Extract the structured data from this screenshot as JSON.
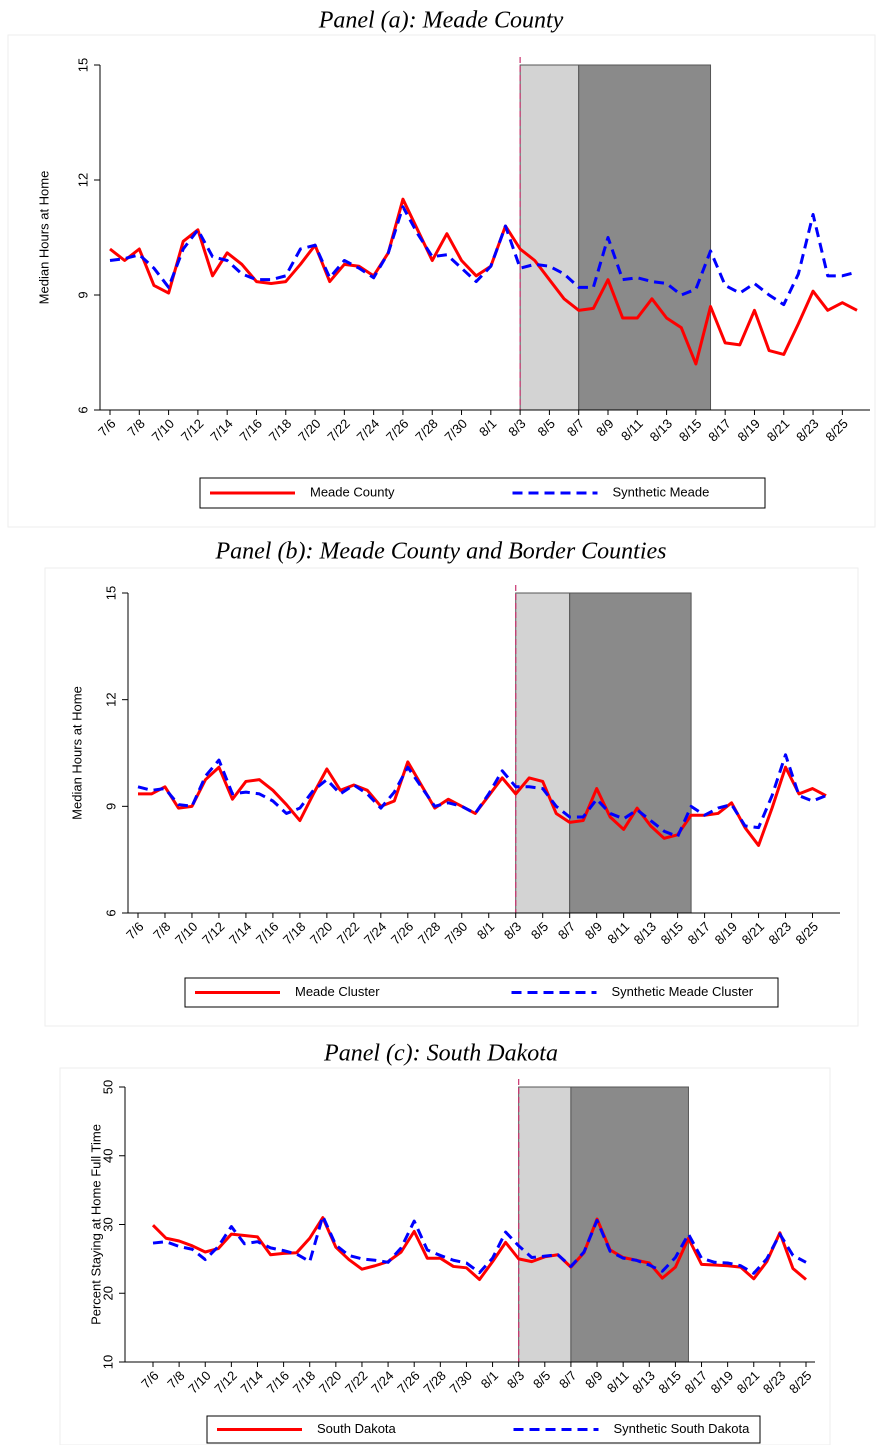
{
  "chart_data": [
    {
      "type": "line",
      "title": "Panel (a): Meade County",
      "y_label": "Median Hours at Home",
      "categories": [
        "7/6",
        null,
        "7/8",
        null,
        "7/10",
        null,
        "7/12",
        null,
        "7/14",
        null,
        "7/16",
        null,
        "7/18",
        null,
        "7/20",
        null,
        "7/22",
        null,
        "7/24",
        null,
        "7/26",
        null,
        "7/28",
        null,
        "7/30",
        null,
        "8/1",
        null,
        "8/3",
        null,
        "8/5",
        null,
        "8/7",
        null,
        "8/9",
        null,
        "8/11",
        null,
        "8/13",
        null,
        "8/15",
        null,
        "8/17",
        null,
        "8/19",
        null,
        "8/21",
        null,
        "8/23",
        null,
        "8/25",
        null
      ],
      "series": [
        {
          "name": "Meade County",
          "color": "#ff0000",
          "style": "solid",
          "values": [
            10.2,
            9.9,
            10.2,
            9.25,
            9.05,
            10.4,
            10.7,
            9.5,
            10.1,
            9.8,
            9.35,
            9.3,
            9.35,
            9.8,
            10.3,
            9.35,
            9.8,
            9.75,
            9.5,
            10.1,
            11.5,
            10.7,
            9.9,
            10.6,
            9.9,
            9.5,
            9.75,
            10.8,
            10.2,
            9.9,
            9.4,
            8.9,
            8.6,
            8.65,
            9.4,
            8.4,
            8.4,
            8.9,
            8.4,
            8.15,
            7.2,
            8.7,
            7.75,
            7.7,
            8.6,
            7.55,
            7.45,
            8.25,
            9.1,
            8.6,
            8.8,
            8.6
          ]
        },
        {
          "name": "Synthetic Meade",
          "color": "#0000ff",
          "style": "dashed",
          "values": [
            9.9,
            9.95,
            10.05,
            9.7,
            9.2,
            10.2,
            10.7,
            10.0,
            9.9,
            9.55,
            9.4,
            9.4,
            9.5,
            10.2,
            10.3,
            9.45,
            9.9,
            9.7,
            9.45,
            10.1,
            11.3,
            10.6,
            10.0,
            10.05,
            9.7,
            9.35,
            9.75,
            10.8,
            9.7,
            9.8,
            9.75,
            9.55,
            9.2,
            9.2,
            10.5,
            9.4,
            9.45,
            9.35,
            9.3,
            9.0,
            9.15,
            10.15,
            9.25,
            9.05,
            9.3,
            9.0,
            8.75,
            9.55,
            11.1,
            9.5,
            9.5,
            9.6
          ]
        }
      ],
      "ylim": [
        6,
        15
      ],
      "yticks": [
        6,
        9,
        12,
        15
      ],
      "vline": {
        "at": 28,
        "color": "#c8326e"
      },
      "shaded": [
        {
          "start": 28,
          "end": 32,
          "color": "#d3d3d3"
        },
        {
          "start": 32,
          "end": 41,
          "color": "#8a8a8a"
        }
      ]
    },
    {
      "type": "line",
      "title": "Panel (b): Meade County and Border Counties",
      "y_label": "Median Hours at Home",
      "categories": [
        "7/6",
        null,
        "7/8",
        null,
        "7/10",
        null,
        "7/12",
        null,
        "7/14",
        null,
        "7/16",
        null,
        "7/18",
        null,
        "7/20",
        null,
        "7/22",
        null,
        "7/24",
        null,
        "7/26",
        null,
        "7/28",
        null,
        "7/30",
        null,
        "8/1",
        null,
        "8/3",
        null,
        "8/5",
        null,
        "8/7",
        null,
        "8/9",
        null,
        "8/11",
        null,
        "8/13",
        null,
        "8/15",
        null,
        "8/17",
        null,
        "8/19",
        null,
        "8/21",
        null,
        "8/23",
        null,
        "8/25",
        null
      ],
      "series": [
        {
          "name": "Meade Cluster",
          "color": "#ff0000",
          "style": "solid",
          "values": [
            9.35,
            9.35,
            9.55,
            8.95,
            9.0,
            9.75,
            10.1,
            9.2,
            9.7,
            9.75,
            9.45,
            9.05,
            8.6,
            9.35,
            10.05,
            9.45,
            9.6,
            9.45,
            9.0,
            9.15,
            10.25,
            9.6,
            8.95,
            9.2,
            9.0,
            8.8,
            9.3,
            9.8,
            9.35,
            9.8,
            9.7,
            8.8,
            8.55,
            8.6,
            9.5,
            8.7,
            8.35,
            8.95,
            8.45,
            8.1,
            8.2,
            8.75,
            8.75,
            8.8,
            9.1,
            8.4,
            7.9,
            8.95,
            10.1,
            9.35,
            9.5,
            9.3
          ]
        },
        {
          "name": "Synthetic Meade Cluster",
          "color": "#0000ff",
          "style": "dashed",
          "values": [
            9.55,
            9.45,
            9.5,
            9.05,
            9.0,
            9.85,
            10.3,
            9.35,
            9.4,
            9.35,
            9.15,
            8.8,
            8.95,
            9.45,
            9.75,
            9.35,
            9.6,
            9.35,
            8.95,
            9.4,
            10.1,
            9.55,
            9.0,
            9.1,
            9.0,
            8.8,
            9.35,
            10.0,
            9.55,
            9.55,
            9.5,
            9.0,
            8.7,
            8.7,
            9.2,
            8.8,
            8.65,
            8.9,
            8.6,
            8.3,
            8.15,
            9.0,
            8.75,
            8.95,
            9.05,
            8.45,
            8.4,
            9.3,
            10.45,
            9.3,
            9.15,
            9.3
          ]
        }
      ],
      "ylim": [
        6,
        15
      ],
      "yticks": [
        6,
        9,
        12,
        15
      ],
      "vline": {
        "at": 28,
        "color": "#c8326e"
      },
      "shaded": [
        {
          "start": 28,
          "end": 32,
          "color": "#d3d3d3"
        },
        {
          "start": 32,
          "end": 41,
          "color": "#8a8a8a"
        }
      ]
    },
    {
      "type": "line",
      "title": "Panel (c): South Dakota",
      "y_label": "Percent Staying at Home Full Time",
      "categories": [
        "7/6",
        null,
        "7/8",
        null,
        "7/10",
        null,
        "7/12",
        null,
        "7/14",
        null,
        "7/16",
        null,
        "7/18",
        null,
        "7/20",
        null,
        "7/22",
        null,
        "7/24",
        null,
        "7/26",
        null,
        "7/28",
        null,
        "7/30",
        null,
        "8/1",
        null,
        "8/3",
        null,
        "8/5",
        null,
        "8/7",
        null,
        "8/9",
        null,
        "8/11",
        null,
        "8/13",
        null,
        "8/15",
        null,
        "8/17",
        null,
        "8/19",
        null,
        "8/21",
        null,
        "8/23",
        null,
        "8/25"
      ],
      "series": [
        {
          "name": "South Dakota",
          "color": "#ff0000",
          "style": "solid",
          "values": [
            29.9,
            28.0,
            27.6,
            26.9,
            26.0,
            26.5,
            28.6,
            28.4,
            28.2,
            25.6,
            25.8,
            25.9,
            28.0,
            31.0,
            26.7,
            24.9,
            23.5,
            24.0,
            24.6,
            26.0,
            29.0,
            25.1,
            25.1,
            23.9,
            23.7,
            22.0,
            24.6,
            27.4,
            25.0,
            24.6,
            25.3,
            25.6,
            23.8,
            25.9,
            30.8,
            26.3,
            25.2,
            24.8,
            24.4,
            22.2,
            23.8,
            28.0,
            24.2,
            24.1,
            24.0,
            23.8,
            22.1,
            24.6,
            28.8,
            23.6,
            22.0
          ]
        },
        {
          "name": "Synthetic South Dakota",
          "color": "#0000ff",
          "style": "dashed",
          "values": [
            27.3,
            27.5,
            26.8,
            26.4,
            24.9,
            26.8,
            29.7,
            27.2,
            27.5,
            26.6,
            26.2,
            25.7,
            24.6,
            31.2,
            27.0,
            25.5,
            25.0,
            24.8,
            24.5,
            26.6,
            30.5,
            26.3,
            25.5,
            24.8,
            24.4,
            23.0,
            25.1,
            28.9,
            26.9,
            25.2,
            25.4,
            25.6,
            23.9,
            26.0,
            30.6,
            26.1,
            25.1,
            24.8,
            24.1,
            23.2,
            25.2,
            28.6,
            25.1,
            24.5,
            24.4,
            24.0,
            22.9,
            25.0,
            28.6,
            25.5,
            24.5
          ]
        }
      ],
      "ylim": [
        10,
        50
      ],
      "yticks": [
        10,
        20,
        30,
        40,
        50
      ],
      "vline": {
        "at": 28,
        "color": "#c8326e"
      },
      "shaded": [
        {
          "start": 28,
          "end": 32,
          "color": "#d3d3d3"
        },
        {
          "start": 32,
          "end": 41,
          "color": "#8a8a8a"
        }
      ]
    }
  ]
}
